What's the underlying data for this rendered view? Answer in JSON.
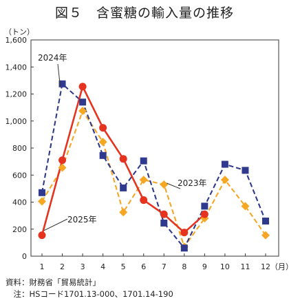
{
  "chart_data": {
    "type": "line",
    "title": "図５　含蜜糖の輸入量の推移",
    "y_unit": "（トン）",
    "x_unit": "（月）",
    "categories": [
      "1",
      "2",
      "3",
      "4",
      "5",
      "6",
      "7",
      "8",
      "9",
      "10",
      "11",
      "12"
    ],
    "ylim": [
      0,
      1600
    ],
    "yticks": [
      0,
      200,
      400,
      600,
      800,
      1000,
      1200,
      1400,
      1600
    ],
    "grid": false,
    "series": [
      {
        "name": "2023年",
        "color": "#f5a623",
        "dash": "dashed",
        "marker": "diamond",
        "values": [
          405,
          655,
          1075,
          845,
          325,
          565,
          530,
          70,
          280,
          565,
          370,
          155
        ]
      },
      {
        "name": "2024年",
        "color": "#2f3a8f",
        "dash": "dashed",
        "marker": "square",
        "values": [
          470,
          1275,
          1140,
          745,
          505,
          705,
          245,
          60,
          370,
          680,
          635,
          260
        ]
      },
      {
        "name": "2025年",
        "color": "#e5331f",
        "dash": "solid",
        "marker": "circle",
        "values": [
          155,
          710,
          1255,
          950,
          720,
          415,
          310,
          175,
          310,
          null,
          null,
          null
        ]
      }
    ]
  },
  "notes": [
    "資料：財務省「貿易統計」",
    "　注：HSコード1701.13-000、1701.14-190"
  ]
}
